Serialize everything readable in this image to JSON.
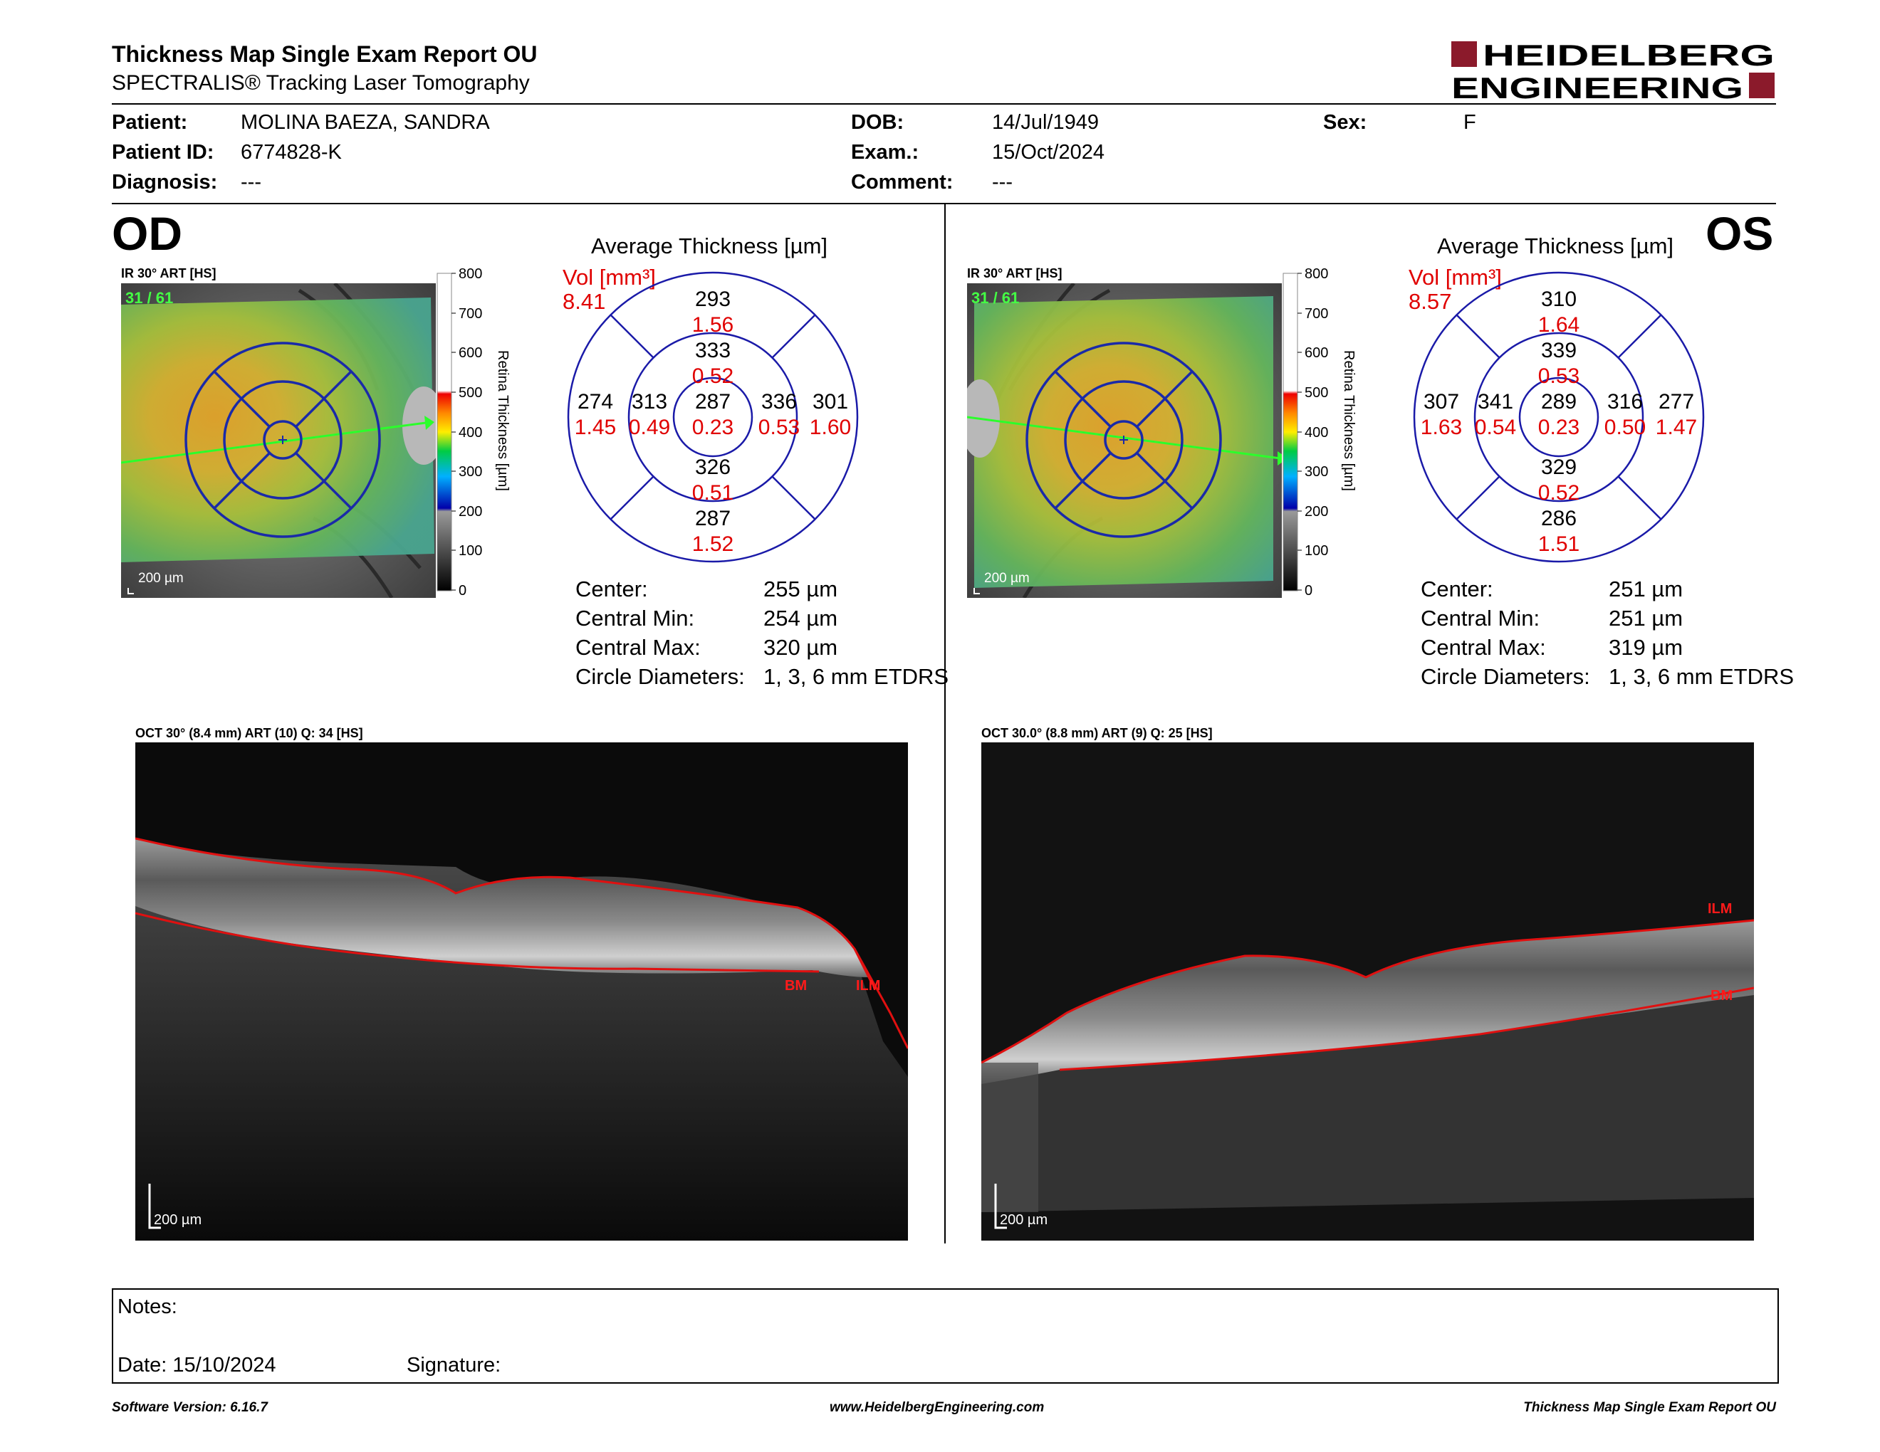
{
  "report": {
    "title": "Thickness Map Single Exam Report OU",
    "subtitle": "SPECTRALIS® Tracking Laser Tomography",
    "logo": {
      "line1": "HEIDELBERG",
      "line2": "ENGINEERING",
      "accent": "#8b1a2b"
    }
  },
  "patient": {
    "patient_label": "Patient:",
    "patient_value": "MOLINA BAEZA, SANDRA",
    "id_label": "Patient ID:",
    "id_value": "6774828-K",
    "diagnosis_label": "Diagnosis:",
    "diagnosis_value": "---",
    "dob_label": "DOB:",
    "dob_value": "14/Jul/1949",
    "exam_label": "Exam.:",
    "exam_value": "15/Oct/2024",
    "comment_label": "Comment:",
    "comment_value": "---",
    "sex_label": "Sex:",
    "sex_value": "F"
  },
  "scale": {
    "ticks": [
      "800",
      "700",
      "600",
      "500",
      "400",
      "300",
      "200",
      "100",
      "0"
    ],
    "axis_label": "Retina Thickness [µm]"
  },
  "od": {
    "eye": "OD",
    "ir_label": "IR 30° ART [HS]",
    "frame": "31 / 61",
    "scalebar": "200 µm",
    "avg_title": "Average Thickness [µm]",
    "vol_label": "Vol [mm³]",
    "vol_value": "8.41",
    "sectors": {
      "center": {
        "t": "287",
        "v": "0.23"
      },
      "inner_sup": {
        "t": "333",
        "v": "0.52"
      },
      "inner_inf": {
        "t": "326",
        "v": "0.51"
      },
      "inner_left": {
        "t": "313",
        "v": "0.49"
      },
      "inner_right": {
        "t": "336",
        "v": "0.53"
      },
      "outer_sup": {
        "t": "293",
        "v": "1.56"
      },
      "outer_inf": {
        "t": "287",
        "v": "1.52"
      },
      "outer_left": {
        "t": "274",
        "v": "1.45"
      },
      "outer_right": {
        "t": "301",
        "v": "1.60"
      }
    },
    "stats": {
      "center_label": "Center:",
      "center_value": "255 µm",
      "min_label": "Central Min:",
      "min_value": "254 µm",
      "max_label": "Central Max:",
      "max_value": "320 µm",
      "diam_label": "Circle Diameters:",
      "diam_value": "1, 3, 6 mm ETDRS"
    },
    "oct_label": "OCT 30° (8.4 mm) ART (10) Q: 34 [HS]",
    "oct_scalebar": "200 µm",
    "oct_tags": [
      "BM",
      "ILM"
    ]
  },
  "os": {
    "eye": "OS",
    "ir_label": "IR 30° ART [HS]",
    "frame": "31 / 61",
    "scalebar": "200 µm",
    "avg_title": "Average Thickness [µm]",
    "vol_label": "Vol [mm³]",
    "vol_value": "8.57",
    "sectors": {
      "center": {
        "t": "289",
        "v": "0.23"
      },
      "inner_sup": {
        "t": "339",
        "v": "0.53"
      },
      "inner_inf": {
        "t": "329",
        "v": "0.52"
      },
      "inner_left": {
        "t": "341",
        "v": "0.54"
      },
      "inner_right": {
        "t": "316",
        "v": "0.50"
      },
      "outer_sup": {
        "t": "310",
        "v": "1.64"
      },
      "outer_inf": {
        "t": "286",
        "v": "1.51"
      },
      "outer_left": {
        "t": "307",
        "v": "1.63"
      },
      "outer_right": {
        "t": "277",
        "v": "1.47"
      }
    },
    "stats": {
      "center_label": "Center:",
      "center_value": "251 µm",
      "min_label": "Central Min:",
      "min_value": "251 µm",
      "max_label": "Central Max:",
      "max_value": "319 µm",
      "diam_label": "Circle Diameters:",
      "diam_value": "1, 3, 6 mm ETDRS"
    },
    "oct_label": "OCT 30.0° (8.8 mm) ART (9) Q: 25 [HS]",
    "oct_scalebar": "200 µm",
    "oct_tags": [
      "ILM",
      "BM"
    ]
  },
  "notes": {
    "notes_label": "Notes:",
    "date_label": "Date: 15/10/2024",
    "signature_label": "Signature:"
  },
  "footer": {
    "software": "Software Version: 6.16.7",
    "website": "www.HeidelbergEngineering.com",
    "report_name": "Thickness Map Single Exam Report OU"
  }
}
